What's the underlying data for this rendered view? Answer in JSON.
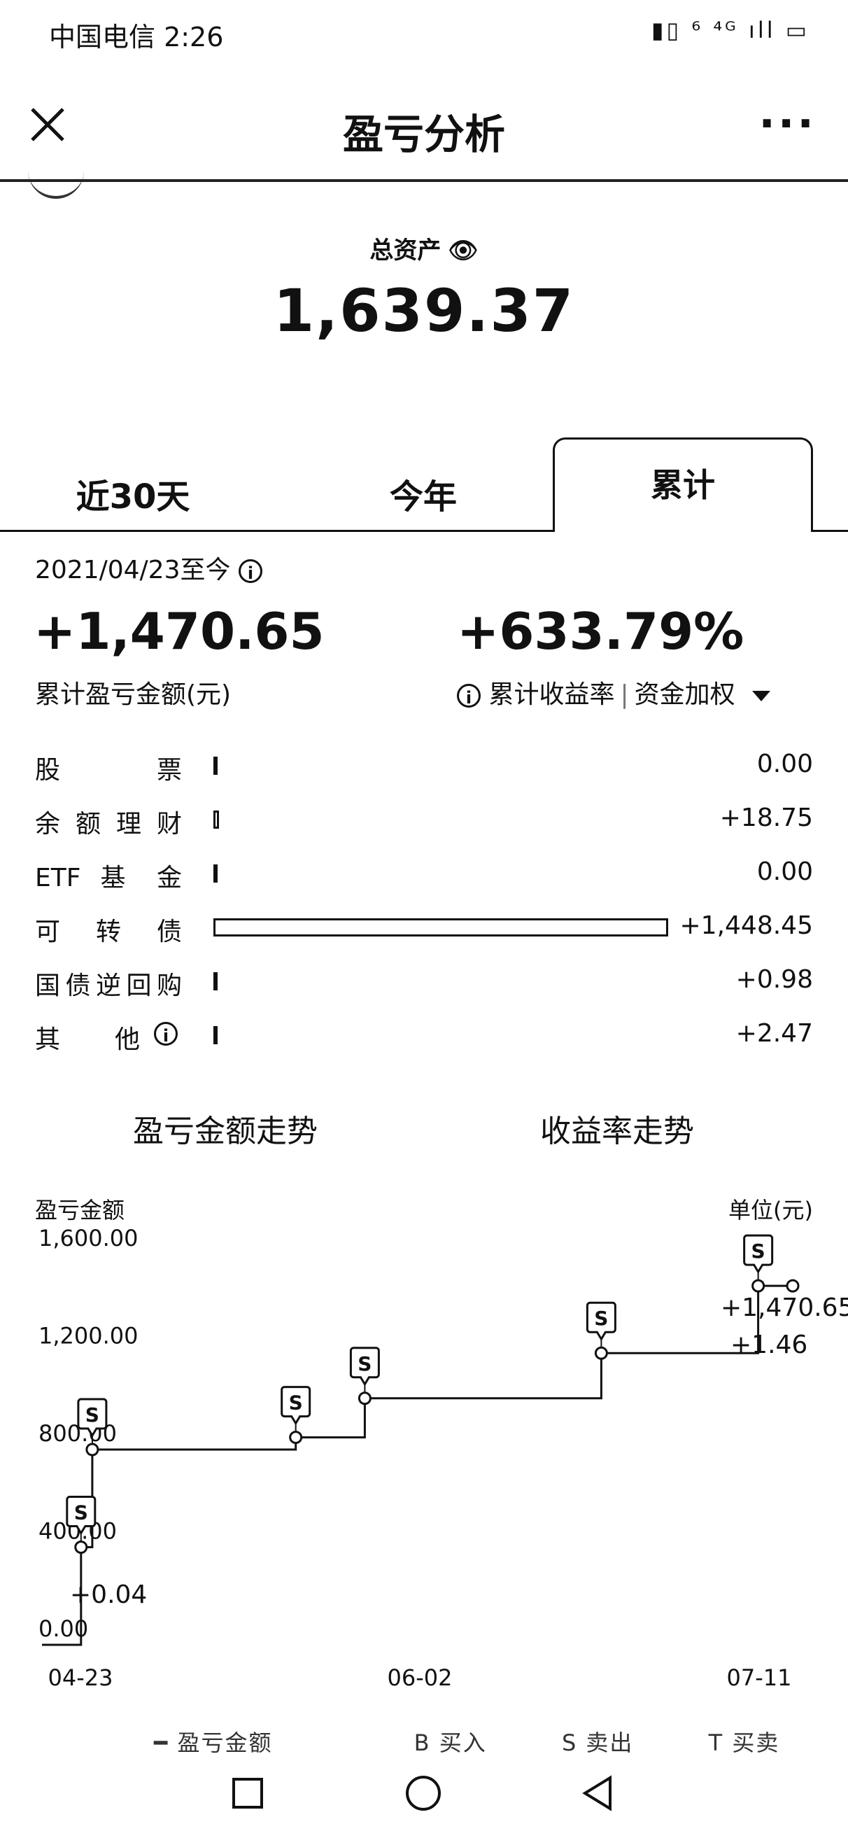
{
  "status_bar": {
    "carrier_time": "中国电信 2:26",
    "icons_text": "▮▯ ⁶ ⁴ᴳ ıll ▭"
  },
  "header": {
    "title": "盈亏分析"
  },
  "assets": {
    "label": "总资产",
    "value": "1,639.37"
  },
  "tabs": [
    {
      "label": "近30天"
    },
    {
      "label": "今年"
    },
    {
      "label": "累计"
    }
  ],
  "summary": {
    "range": "2021/04/23至今",
    "pl_value": "+1,470.65",
    "pl_label": "累计盈亏金额(元)",
    "rate_value": "+633.79%",
    "rate_label": "累计收益率",
    "rate_mode": "资金加权"
  },
  "categories": [
    {
      "label": "股 票",
      "value": "0.00",
      "amount": 0
    },
    {
      "label": "余额理财",
      "value": "+18.75",
      "amount": 18.75
    },
    {
      "label": "ETF 基 金",
      "value": "0.00",
      "amount": 0
    },
    {
      "label": "可 转 债",
      "value": "+1,448.45",
      "amount": 1448.45
    },
    {
      "label": "国债逆回购",
      "value": "+0.98",
      "amount": 0.98
    },
    {
      "label": "其 他",
      "value": "+2.47",
      "amount": 2.47
    }
  ],
  "trend_tabs": {
    "amount": "盈亏金额走势",
    "rate": "收益率走势"
  },
  "chart_data": {
    "type": "line",
    "ylabel": "盈亏金额",
    "unit_label": "单位(元)",
    "y_ticks": [
      "1,600.00",
      "1,200.00",
      "800.00",
      "400.00",
      "0.00"
    ],
    "y_tick_values": [
      1600,
      1200,
      800,
      400,
      0
    ],
    "x_tick_labels": [
      "04-23",
      "06-02",
      "07-11"
    ],
    "ylim": [
      0,
      1600
    ],
    "series": [
      {
        "name": "盈亏金额",
        "points": [
          {
            "x": 0,
            "y": 0
          },
          {
            "x": 0.052,
            "y": 0
          },
          {
            "x": 0.052,
            "y": 400
          },
          {
            "x": 0.067,
            "y": 400
          },
          {
            "x": 0.067,
            "y": 800
          },
          {
            "x": 0.338,
            "y": 800
          },
          {
            "x": 0.338,
            "y": 850
          },
          {
            "x": 0.43,
            "y": 850
          },
          {
            "x": 0.43,
            "y": 1010
          },
          {
            "x": 0.745,
            "y": 1010
          },
          {
            "x": 0.745,
            "y": 1195
          },
          {
            "x": 0.954,
            "y": 1195
          },
          {
            "x": 0.954,
            "y": 1470.65
          },
          {
            "x": 1,
            "y": 1470.65
          }
        ]
      }
    ],
    "markers": [
      {
        "x": 0.052,
        "y": 400,
        "type": "S"
      },
      {
        "x": 0.067,
        "y": 800,
        "type": "S"
      },
      {
        "x": 0.338,
        "y": 850,
        "type": "S"
      },
      {
        "x": 0.43,
        "y": 1010,
        "type": "S"
      },
      {
        "x": 0.745,
        "y": 1195,
        "type": "S"
      },
      {
        "x": 0.954,
        "y": 1470.65,
        "type": "S"
      }
    ],
    "annotations": [
      "+0.04",
      "+1,470.65",
      "+1.46",
      "+1.46"
    ]
  },
  "legend": {
    "line": "盈亏金额",
    "buy": "B 买入",
    "sell": "S 卖出",
    "trade": "T 买卖"
  },
  "colors": {
    "text": "#111111",
    "background": "#ffffff"
  }
}
